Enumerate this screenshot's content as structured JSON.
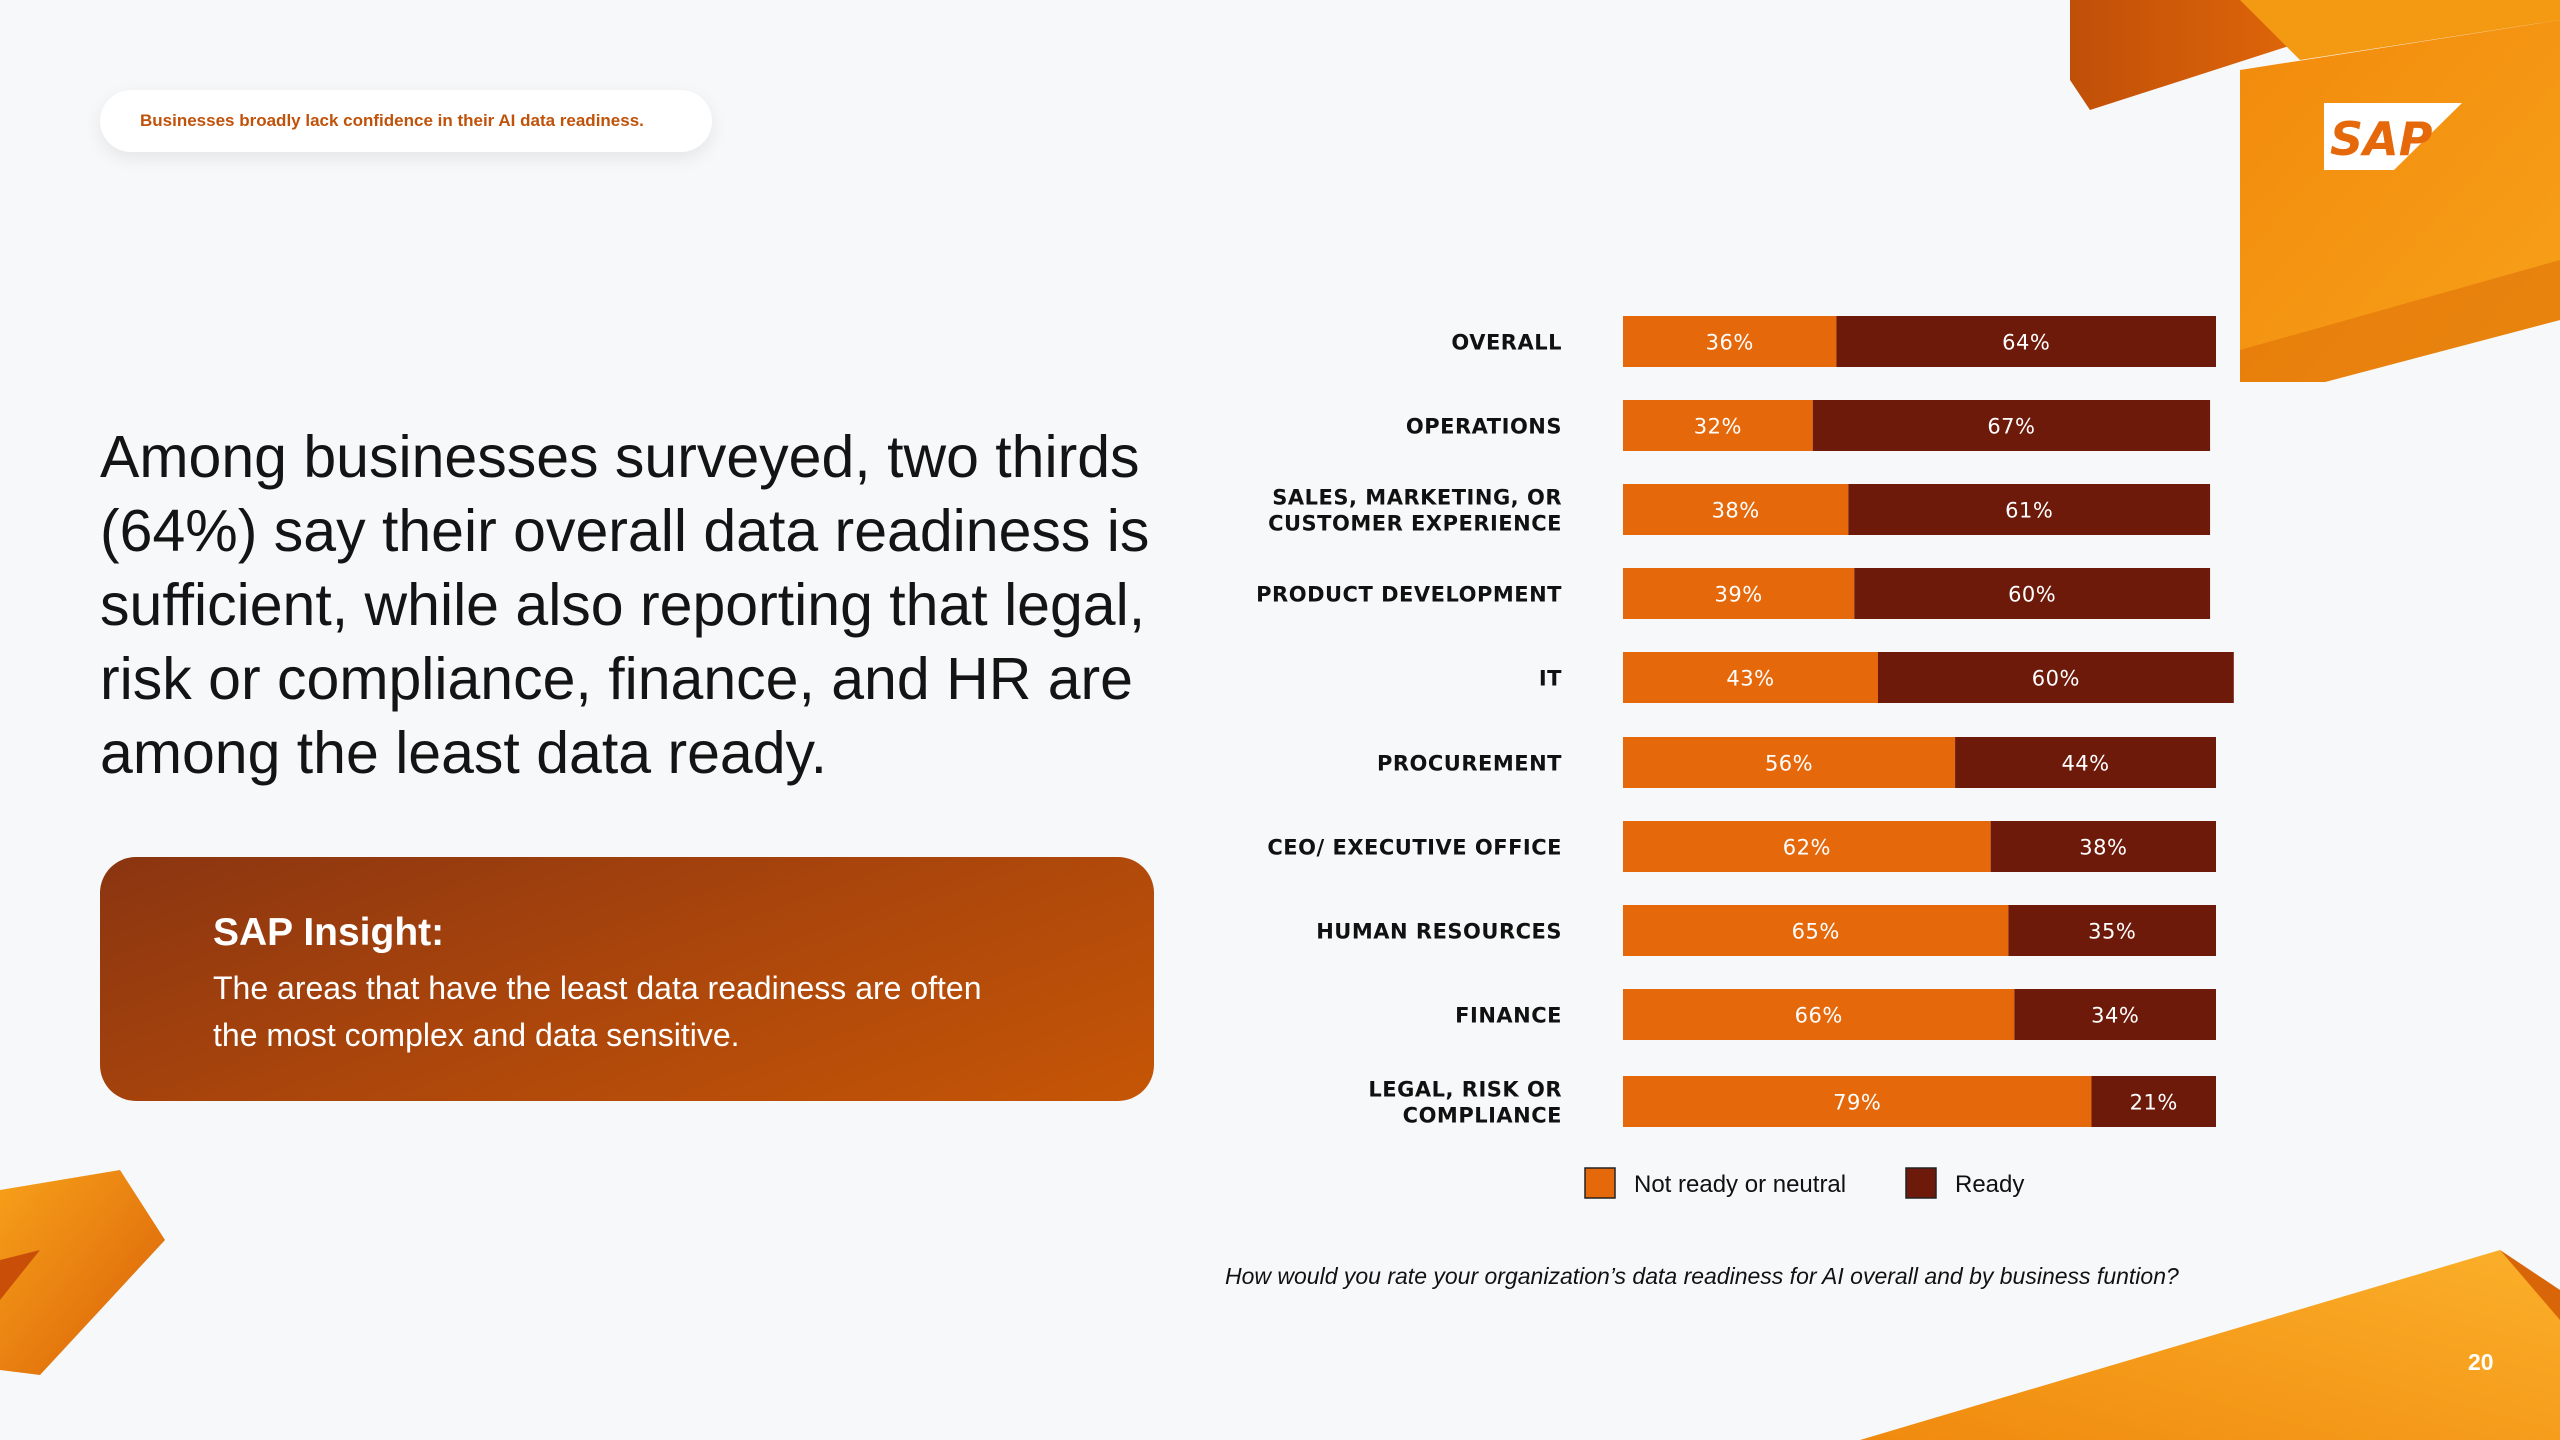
{
  "header": {
    "pill_text": "Businesses broadly lack confidence in their AI data readiness."
  },
  "headline": "Among businesses surveyed, two thirds (64%) say their overall data readiness is sufficient, while also reporting that legal, risk or compliance, finance, and HR are among the least data ready.",
  "insight": {
    "title": "SAP Insight:",
    "body": "The areas that have the least data readiness are often the most complex and data sensitive."
  },
  "brand": {
    "logo_text": "SAP",
    "accent": "#e5680b",
    "dark": "#6e1a0a"
  },
  "page_number": "20",
  "chart_data": {
    "type": "bar",
    "orientation": "horizontal",
    "stacked": true,
    "categories": [
      [
        "OVERALL"
      ],
      [
        "OPERATIONS"
      ],
      [
        "SALES, MARKETING, OR",
        "CUSTOMER EXPERIENCE"
      ],
      [
        "PRODUCT DEVELOPMENT"
      ],
      [
        "IT"
      ],
      [
        "PROCUREMENT"
      ],
      [
        "CEO/ EXECUTIVE OFFICE"
      ],
      [
        "HUMAN RESOURCES"
      ],
      [
        "FINANCE"
      ],
      [
        "LEGAL, RISK OR",
        "COMPLIANCE"
      ]
    ],
    "series": [
      {
        "name": "Not ready or neutral",
        "color": "#e5680b",
        "values": [
          36,
          32,
          38,
          39,
          43,
          56,
          62,
          65,
          66,
          79
        ]
      },
      {
        "name": "Ready",
        "color": "#6e1a0a",
        "values": [
          64,
          67,
          61,
          60,
          60,
          44,
          38,
          35,
          34,
          21
        ]
      }
    ],
    "value_suffix": "%",
    "legend_position": "bottom",
    "question": "How would you rate your organization’s data readiness for AI overall and by business funtion?"
  }
}
